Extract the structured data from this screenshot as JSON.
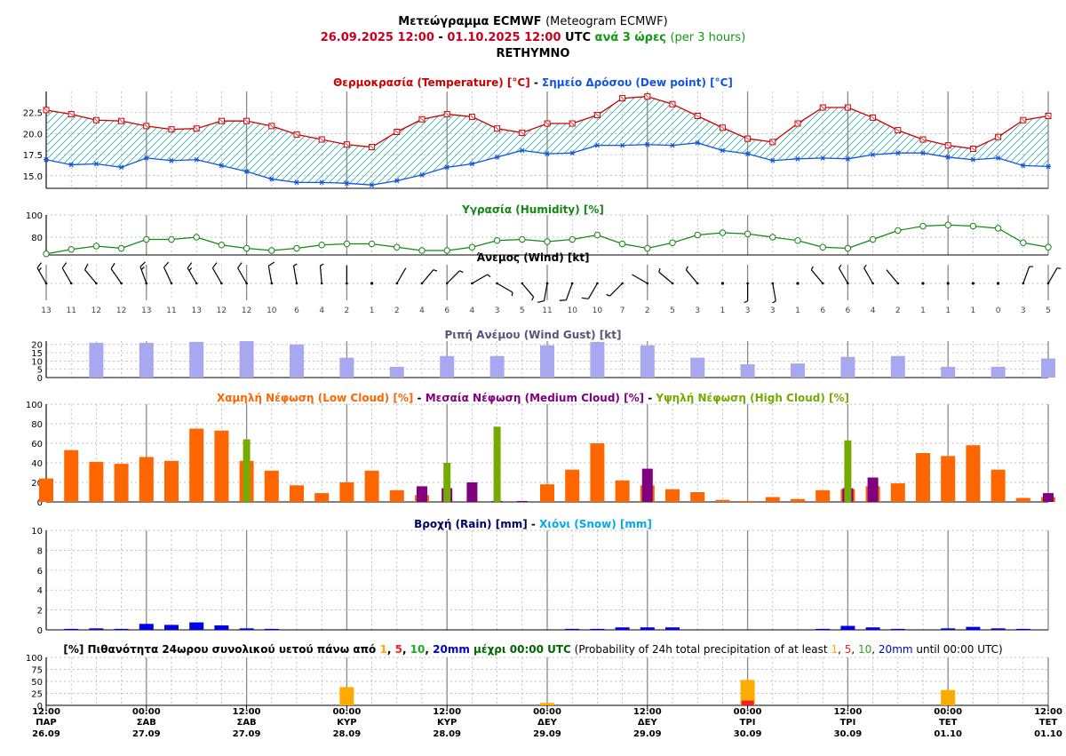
{
  "header": {
    "title_gr": "Μετεώγραμμα ECMWF",
    "title_en": "(Meteogram ECMWF)",
    "date_from": "26.09.2025 12:00",
    "date_to": "01.10.2025 12:00",
    "sep": "-",
    "utc": "UTC",
    "interval_gr": "ανά 3 ώρες",
    "interval_en": "(per 3 hours)",
    "location": "RETHYMNO"
  },
  "x_axis": {
    "times": [
      "12:00",
      "00:00",
      "12:00",
      "00:00",
      "12:00",
      "00:00",
      "12:00",
      "00:00",
      "12:00",
      "00:00",
      "12:00"
    ],
    "days": [
      "ΠΑΡ",
      "ΣΑΒ",
      "ΣΑΒ",
      "ΚΥΡ",
      "ΚΥΡ",
      "ΔΕΥ",
      "ΔΕΥ",
      "ΤΡΙ",
      "ΤΡΙ",
      "ΤΕΤ",
      "ΤΕΤ"
    ],
    "dates": [
      "26.09",
      "27.09",
      "27.09",
      "28.09",
      "28.09",
      "29.09",
      "29.09",
      "30.09",
      "30.09",
      "01.10",
      "01.10"
    ]
  },
  "colors": {
    "temperature": "#cc0000",
    "dew_point": "#1155dd",
    "humidity": "#118811",
    "wind_gust": "#a8a8f0",
    "low_cloud": "#ff6600",
    "medium_cloud": "#800080",
    "high_cloud": "#77aa00",
    "rain": "#0000ee",
    "snow": "#00aaee",
    "prob_1": "#ffaa00",
    "prob_5": "#ee2222",
    "prob_10": "#22aa22",
    "prob_20": "#0000cc"
  },
  "chart_data": [
    {
      "id": "temperature",
      "type": "line",
      "title_parts": [
        "Θερμοκρασία (Temperature) [°C]",
        " - ",
        "Σημείο Δρόσου (Dew point) [°C]"
      ],
      "ylim": [
        13.5,
        25
      ],
      "yticks": [
        15.0,
        17.5,
        20.0,
        22.5
      ],
      "grid": true,
      "series": [
        {
          "name": "Θερμοκρασία (Temperature) [°C]",
          "values": [
            22.8,
            22.3,
            21.6,
            21.5,
            20.9,
            20.5,
            20.6,
            21.5,
            21.5,
            20.9,
            19.9,
            19.3,
            18.7,
            18.4,
            20.2,
            21.7,
            22.3,
            22.0,
            20.6,
            20.1,
            21.2,
            21.2,
            22.2,
            24.2,
            24.4,
            23.5,
            22.1,
            20.7,
            19.4,
            19.0,
            21.2,
            23.1,
            23.1,
            21.9,
            20.4,
            19.3,
            18.6,
            18.2,
            19.6,
            21.6,
            22.1
          ]
        },
        {
          "name": "Σημείο Δρόσου (Dew point) [°C]",
          "values": [
            16.9,
            16.3,
            16.4,
            16.0,
            17.1,
            16.8,
            16.9,
            16.2,
            15.5,
            14.6,
            14.2,
            14.2,
            14.1,
            13.9,
            14.4,
            15.1,
            16.0,
            16.4,
            17.2,
            18.0,
            17.6,
            17.7,
            18.6,
            18.6,
            18.7,
            18.6,
            18.9,
            18.0,
            17.6,
            16.8,
            17.0,
            17.1,
            17.0,
            17.5,
            17.7,
            17.7,
            17.2,
            16.9,
            17.1,
            16.2,
            16.1
          ]
        }
      ]
    },
    {
      "id": "humidity",
      "type": "line",
      "title": "Υγρασία (Humidity) [%]",
      "ylim": [
        64,
        100
      ],
      "yticks": [
        80,
        100
      ],
      "grid": true,
      "series": [
        {
          "name": "Υγρασία (Humidity) [%]",
          "values": [
            65,
            69,
            72,
            70,
            78,
            78,
            80,
            73,
            70,
            68,
            70,
            73,
            74,
            74,
            71,
            68,
            68,
            71,
            77,
            78,
            76,
            78,
            82,
            74,
            70,
            75,
            82,
            84,
            83,
            80,
            77,
            71,
            70,
            78,
            86,
            90,
            91,
            90,
            88,
            75,
            71
          ]
        }
      ]
    },
    {
      "id": "wind",
      "type": "scatter",
      "title": "Άνεμος (Wind) [kt]",
      "speeds": [
        13,
        11,
        12,
        12,
        13,
        11,
        13,
        12,
        12,
        10,
        6,
        4,
        2,
        1,
        2,
        4,
        6,
        4,
        3,
        5,
        11,
        10,
        10,
        7,
        2,
        5,
        3,
        1,
        3,
        3,
        1,
        6,
        6,
        4,
        2,
        1,
        1,
        1,
        0,
        3,
        5
      ],
      "directions_deg": [
        330,
        330,
        320,
        325,
        340,
        335,
        330,
        330,
        330,
        350,
        350,
        355,
        0,
        0,
        30,
        40,
        45,
        60,
        120,
        140,
        190,
        200,
        210,
        225,
        300,
        310,
        320,
        0,
        180,
        170,
        0,
        320,
        330,
        330,
        320,
        270,
        245,
        195,
        0,
        20,
        30
      ]
    },
    {
      "id": "wind_gust",
      "type": "bar",
      "title": "Ριπή Ανέμου (Wind Gust) [kt]",
      "ylim": [
        0,
        22
      ],
      "yticks": [
        0,
        5,
        10,
        15,
        20
      ],
      "values": [
        21,
        21,
        21.5,
        22,
        20,
        12,
        6.5,
        13,
        13,
        19.5,
        21.5,
        19.5,
        12,
        8,
        8.5,
        12.5,
        13,
        6.5,
        6.5,
        11.5
      ],
      "positions": [
        2,
        4,
        6,
        8,
        10,
        12,
        14,
        16,
        18,
        20,
        22,
        24,
        26,
        28,
        30,
        32,
        34,
        36,
        38,
        40
      ]
    },
    {
      "id": "clouds",
      "type": "bar",
      "title_parts": [
        "Χαμηλή Νέφωση (Low Cloud) [%]",
        " - ",
        "Μεσαία Νέφωση (Medium Cloud) [%]",
        " - ",
        "Υψηλή Νέφωση (High Cloud) [%]"
      ],
      "ylim": [
        0,
        100
      ],
      "yticks": [
        0,
        20,
        40,
        60,
        80,
        100
      ],
      "series": [
        {
          "name": "Χαμηλή Νέφωση (Low Cloud) [%]",
          "values": [
            24,
            53,
            41,
            39,
            46,
            42,
            75,
            73,
            42,
            32,
            17,
            9,
            20,
            32,
            12,
            7,
            1,
            1,
            0,
            0,
            18,
            33,
            60,
            22,
            17,
            13,
            10,
            2,
            1,
            5,
            3,
            12,
            13,
            16,
            19,
            50,
            47,
            58,
            33,
            4,
            5
          ]
        },
        {
          "name": "Μεσαία Νέφωση (Medium Cloud) [%]",
          "values": [
            0,
            0,
            0,
            0,
            0,
            0,
            0,
            0,
            0,
            0,
            0,
            0,
            0,
            0,
            0,
            16,
            14,
            20,
            1,
            1,
            0,
            0,
            0,
            0,
            34,
            0,
            0,
            0,
            0,
            0,
            0,
            0,
            14,
            25,
            0,
            0,
            0,
            0,
            0,
            0,
            9
          ]
        },
        {
          "name": "Υψηλή Νέφωση (High Cloud) [%]",
          "values": [
            0,
            0,
            0,
            0,
            0,
            0,
            0,
            0,
            64,
            0,
            0,
            0,
            0,
            0,
            0,
            0,
            40,
            0,
            77,
            0,
            0,
            0,
            0,
            0,
            0,
            0,
            0,
            0,
            0,
            0,
            0,
            0,
            63,
            0,
            0,
            0,
            0,
            0,
            0,
            0,
            0
          ]
        }
      ]
    },
    {
      "id": "precipitation",
      "type": "bar",
      "title_parts": [
        "Βροχή (Rain) [mm]",
        " - ",
        "Χιόνι (Snow) [mm]"
      ],
      "ylim": [
        0,
        10
      ],
      "yticks": [
        0,
        2,
        4,
        6,
        8,
        10
      ],
      "series": [
        {
          "name": "Βροχή (Rain) [mm]",
          "values": [
            0,
            0.1,
            0.15,
            0.1,
            0.6,
            0.5,
            0.75,
            0.45,
            0.15,
            0.1,
            0,
            0,
            0,
            0,
            0,
            0,
            0,
            0,
            0,
            0,
            0,
            0.1,
            0.1,
            0.25,
            0.25,
            0.25,
            0,
            0,
            0,
            0,
            0,
            0.1,
            0.4,
            0.25,
            0.1,
            0,
            0.15,
            0.3,
            0.15,
            0.1,
            0
          ]
        },
        {
          "name": "Χιόνι (Snow) [mm]",
          "values": []
        }
      ]
    },
    {
      "id": "probability",
      "type": "bar",
      "title_parts": [
        "[%] Πιθανότητα 24ωρου συνολικού υετού πάνω από ",
        "1",
        ", ",
        "5",
        ", ",
        "10",
        ", ",
        "20mm",
        " μέχρι 00:00 UTC",
        " (Probability of 24h total precipitation of at least ",
        "1",
        ", ",
        "5",
        ", ",
        "10",
        ", ",
        "20mm",
        " until 00:00 UTC)"
      ],
      "ylim": [
        0,
        100
      ],
      "yticks": [
        0,
        25,
        50,
        75,
        100
      ],
      "categories": [
        "27.09",
        "28.09",
        "29.09",
        "30.09",
        "01.10"
      ],
      "series": [
        {
          "name": "1",
          "values": [
            0,
            38,
            5,
            53,
            32
          ]
        },
        {
          "name": "5",
          "values": [
            0,
            0,
            0,
            10,
            0
          ]
        },
        {
          "name": "10",
          "values": [
            0,
            0,
            0,
            0,
            0
          ]
        },
        {
          "name": "20mm",
          "values": [
            0,
            0,
            0,
            0,
            0
          ]
        }
      ]
    }
  ]
}
